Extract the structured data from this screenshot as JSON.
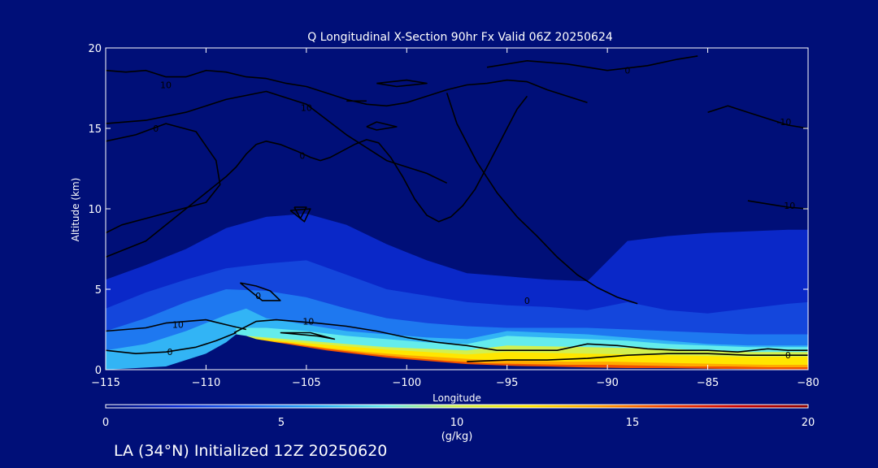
{
  "chart_data": {
    "type": "heatmap",
    "title": "Q Longitudinal X-Section 90hr  Fx Valid 06Z 20250624",
    "xlabel": "Longitude",
    "ylabel": "Altitude (km)",
    "xlim": [
      -115,
      -80
    ],
    "ylim": [
      0,
      20
    ],
    "x_ticks": [
      -115,
      -110,
      -105,
      -100,
      -95,
      -90,
      -85,
      -80
    ],
    "x_tick_labels": [
      "−115",
      "−110",
      "−105",
      "−100",
      "−95",
      "−90",
      "−85",
      "−80"
    ],
    "y_ticks": [
      0,
      5,
      10,
      15,
      20
    ],
    "y_tick_labels": [
      "0",
      "5",
      "10",
      "15",
      "20"
    ],
    "colorbar": {
      "label": "(g/kg)",
      "min": 0,
      "max": 20,
      "ticks": [
        0,
        5,
        10,
        15,
        20
      ],
      "tick_labels": [
        "0",
        "5",
        "10",
        "15",
        "20"
      ],
      "colors": [
        "#000f78",
        "#0a2ad2",
        "#1e64f0",
        "#28aaf5",
        "#64ecec",
        "#d2f050",
        "#ffe600",
        "#ffa000",
        "#f03c00",
        "#c80000",
        "#8c0000"
      ]
    },
    "terrain": {
      "color": "#000f78",
      "x": [
        -115,
        -112,
        -110,
        -109,
        -108.5,
        -108,
        -107.5,
        -107,
        -106,
        -105,
        -104,
        -103,
        -102,
        -101,
        -100,
        -99,
        -98,
        -97,
        -96,
        -95,
        -94,
        -93,
        -92,
        -91,
        -90,
        -89,
        -88,
        -87,
        -86,
        -85,
        -84,
        -83,
        -82,
        -81,
        -80
      ],
      "y": [
        0,
        0.2,
        1.0,
        1.7,
        2.2,
        2.1,
        1.9,
        1.8,
        1.6,
        1.4,
        1.2,
        1.05,
        0.9,
        0.75,
        0.65,
        0.55,
        0.45,
        0.35,
        0.3,
        0.25,
        0.22,
        0.2,
        0.17,
        0.14,
        0.12,
        0.1,
        0.1,
        0.1,
        0.08,
        0.06,
        0.05,
        0.04,
        0.03,
        0.02,
        0.02
      ]
    },
    "specific_humidity_layers": [
      {
        "value": 1.5,
        "color": "#0a28c8",
        "x": [
          -115,
          -113,
          -111,
          -109,
          -107,
          -105,
          -103,
          -101,
          -99,
          -97,
          -95,
          -93,
          -91,
          -89,
          -87,
          -85,
          -83,
          -81,
          -80
        ],
        "top": [
          5.6,
          6.5,
          7.5,
          8.8,
          9.5,
          9.7,
          9.0,
          7.8,
          6.8,
          6.0,
          5.8,
          5.6,
          5.5,
          8.0,
          8.3,
          8.5,
          8.6,
          8.7,
          8.7
        ]
      },
      {
        "value": 3,
        "color": "#1446dc",
        "x": [
          -115,
          -113,
          -111,
          -109,
          -107,
          -105,
          -103,
          -101,
          -99,
          -97,
          -95,
          -93,
          -91,
          -89,
          -87,
          -85,
          -83,
          -81,
          -80
        ],
        "top": [
          3.8,
          4.8,
          5.6,
          6.3,
          6.6,
          6.8,
          5.9,
          5.0,
          4.6,
          4.2,
          4.0,
          3.9,
          3.7,
          4.2,
          3.7,
          3.5,
          3.8,
          4.1,
          4.2
        ]
      },
      {
        "value": 5,
        "color": "#1e78f0",
        "x": [
          -115,
          -113,
          -111,
          -109,
          -107,
          -105,
          -103,
          -101,
          -99,
          -97,
          -95,
          -93,
          -91,
          -89,
          -87,
          -85,
          -83,
          -81,
          -80
        ],
        "top": [
          2.4,
          3.2,
          4.2,
          5.0,
          4.9,
          4.5,
          3.8,
          3.2,
          2.9,
          2.7,
          2.6,
          2.6,
          2.6,
          2.5,
          2.4,
          2.3,
          2.2,
          2.2,
          2.2
        ]
      },
      {
        "value": 7,
        "color": "#32b4f5",
        "x": [
          -115,
          -113,
          -111,
          -109,
          -108,
          -107,
          -105,
          -103,
          -101,
          -99,
          -97,
          -95,
          -93,
          -91,
          -89,
          -87,
          -85,
          -83,
          -81,
          -80
        ],
        "top": [
          1.2,
          1.6,
          2.4,
          3.4,
          3.8,
          3.2,
          2.8,
          2.4,
          2.2,
          2.0,
          1.9,
          2.4,
          2.3,
          2.2,
          2.0,
          1.8,
          1.6,
          1.5,
          1.5,
          1.5
        ]
      },
      {
        "value": 9,
        "color": "#64ecec",
        "x": [
          -108.5,
          -107,
          -105,
          -103,
          -101,
          -99,
          -97,
          -95,
          -93,
          -91,
          -89,
          -87,
          -85,
          -83,
          -81,
          -80
        ],
        "top": [
          2.6,
          2.6,
          2.4,
          2.1,
          1.9,
          1.7,
          1.6,
          2.1,
          2.0,
          1.9,
          1.8,
          1.6,
          1.5,
          1.4,
          1.4,
          1.4
        ]
      },
      {
        "value": 11,
        "color": "#d2f050",
        "x": [
          -108,
          -107,
          -105,
          -103,
          -101,
          -99,
          -97,
          -95,
          -93,
          -91,
          -89,
          -87,
          -85,
          -83,
          -81,
          -80
        ],
        "top": [
          2.1,
          2.0,
          1.8,
          1.6,
          1.4,
          1.3,
          1.2,
          1.5,
          1.45,
          1.4,
          1.35,
          1.3,
          1.2,
          1.1,
          1.1,
          1.1
        ]
      },
      {
        "value": 13,
        "color": "#ffe600",
        "x": [
          -107.5,
          -107,
          -105,
          -103,
          -101,
          -99,
          -97,
          -95,
          -93,
          -91,
          -89,
          -87,
          -85,
          -83,
          -81,
          -80
        ],
        "top": [
          1.95,
          1.9,
          1.65,
          1.45,
          1.25,
          1.1,
          0.95,
          1.1,
          1.05,
          1.0,
          0.95,
          0.9,
          0.85,
          0.8,
          0.8,
          0.8
        ]
      },
      {
        "value": 15,
        "color": "#ffaa00",
        "x": [
          -107.2,
          -106,
          -104,
          -102,
          -100,
          -98,
          -96,
          -94,
          -92,
          -90,
          -88,
          -86,
          -84,
          -82,
          -80
        ],
        "top": [
          1.85,
          1.7,
          1.35,
          1.1,
          0.9,
          0.75,
          0.6,
          0.55,
          0.5,
          0.5,
          0.45,
          0.4,
          0.35,
          0.3,
          0.3
        ]
      },
      {
        "value": 17,
        "color": "#f05000",
        "x": [
          -107,
          -106,
          -104,
          -102,
          -100,
          -98,
          -96,
          -94,
          -92,
          -90,
          -88,
          -86,
          -84,
          -82,
          -80
        ],
        "top": [
          1.75,
          1.65,
          1.3,
          1.0,
          0.75,
          0.55,
          0.4,
          0.35,
          0.3,
          0.3,
          0.25,
          0.2,
          0.2,
          0.15,
          0.15
        ]
      }
    ],
    "contours": [
      {
        "level": "0",
        "label_at": [
          -111.8,
          1.1
        ],
        "x": [
          -115,
          -113.5,
          -112,
          -110.5,
          -109.5,
          -108.5
        ],
        "y": [
          1.2,
          1.0,
          1.1,
          1.4,
          1.8,
          2.3
        ]
      },
      {
        "level": "0",
        "label_at": [
          -81,
          0.9
        ],
        "x": [
          -97,
          -95,
          -93,
          -91,
          -89,
          -87,
          -85,
          -83,
          -81,
          -80
        ],
        "y": [
          0.5,
          0.6,
          0.6,
          0.7,
          0.9,
          1.0,
          1.0,
          0.9,
          0.9,
          0.9
        ]
      },
      {
        "level": "10",
        "label_at": [
          -111.4,
          2.8
        ],
        "x": [
          -115,
          -114,
          -113,
          -112,
          -111,
          -110,
          -109,
          -108
        ],
        "y": [
          2.4,
          2.5,
          2.6,
          2.9,
          3.0,
          3.1,
          2.8,
          2.5
        ]
      },
      {
        "level": "10",
        "label_at": [
          -104.9,
          3.0
        ],
        "x": [
          -108.6,
          -107.5,
          -106.5,
          -105.5,
          -104.5,
          -103,
          -101.5,
          -100,
          -98.5,
          -97,
          -95.5,
          -94,
          -92.5,
          -91,
          -89.5,
          -88,
          -86.5,
          -85,
          -83.5,
          -82,
          -81,
          -80
        ],
        "y": [
          2.3,
          3.0,
          3.1,
          3.0,
          2.9,
          2.7,
          2.4,
          2.0,
          1.7,
          1.5,
          1.2,
          1.2,
          1.2,
          1.6,
          1.5,
          1.3,
          1.2,
          1.2,
          1.1,
          1.3,
          1.2,
          1.2
        ]
      },
      {
        "level": "10",
        "label_at": [
          -112,
          17.7
        ],
        "x": [
          -115,
          -114,
          -113,
          -112,
          -111,
          -110,
          -109,
          -108,
          -107,
          -106,
          -105,
          -104,
          -103,
          -102,
          -101,
          -100,
          -99,
          -98,
          -97,
          -96,
          -95,
          -94,
          -93,
          -92,
          -91
        ],
        "y": [
          18.6,
          18.5,
          18.6,
          18.2,
          18.2,
          18.6,
          18.5,
          18.2,
          18.1,
          17.8,
          17.6,
          17.2,
          16.8,
          16.5,
          16.4,
          16.6,
          17.0,
          17.4,
          17.7,
          17.8,
          18.0,
          17.9,
          17.4,
          17.0,
          16.6
        ]
      },
      {
        "level": "10",
        "label_at": [
          -105,
          16.3
        ],
        "x": [
          -115,
          -113,
          -111,
          -109,
          -107,
          -105,
          -103,
          -101,
          -99,
          -98
        ],
        "y": [
          15.3,
          15.5,
          16.0,
          16.8,
          17.3,
          16.5,
          14.6,
          13.0,
          12.2,
          11.6
        ]
      },
      {
        "level": "0",
        "label_at": [
          -112.5,
          15.0
        ],
        "x": [
          -115,
          -113.5,
          -112,
          -110.5,
          -109.5,
          -109.3,
          -110,
          -111.5,
          -113,
          -114.2,
          -115
        ],
        "y": [
          14.2,
          14.6,
          15.3,
          14.8,
          13.0,
          11.5,
          10.4,
          9.9,
          9.4,
          9.0,
          8.5
        ]
      },
      {
        "level": "0",
        "label_at": [
          -105.2,
          13.3
        ],
        "x": [
          -115,
          -113,
          -111,
          -110,
          -109,
          -108.5,
          -108,
          -107.5,
          -107,
          -106.3,
          -105.5,
          -104.8,
          -104.3,
          -103.8,
          -103.2,
          -102.6,
          -102.0,
          -101.4,
          -100.8,
          -100.2,
          -99.6,
          -99,
          -98.4,
          -97.8,
          -97.2,
          -96.6,
          -96,
          -95.5,
          -95,
          -94.5,
          -94
        ],
        "y": [
          7.0,
          8.0,
          10.0,
          11.0,
          12.0,
          12.6,
          13.4,
          14.0,
          14.2,
          14.0,
          13.6,
          13.2,
          13.0,
          13.2,
          13.6,
          14.0,
          14.3,
          14.1,
          13.2,
          12.0,
          10.6,
          9.6,
          9.2,
          9.5,
          10.2,
          11.2,
          12.6,
          13.8,
          15.0,
          16.2,
          17.0
        ]
      },
      {
        "level": "0",
        "label_at": [
          -89,
          18.6
        ],
        "x": [
          -96,
          -94,
          -92,
          -90,
          -88,
          -86.5,
          -85.5
        ],
        "y": [
          18.8,
          19.2,
          19.0,
          18.6,
          18.9,
          19.3,
          19.5
        ]
      },
      {
        "level": "0",
        "label_at": [
          -94,
          4.3
        ],
        "x": [
          -98,
          -97.5,
          -96.5,
          -95.5,
          -94.5,
          -93.5,
          -92.5,
          -91.5,
          -90.5,
          -89.5,
          -88.5
        ],
        "y": [
          17.2,
          15.3,
          12.9,
          11.0,
          9.5,
          8.3,
          7.0,
          5.9,
          5.1,
          4.5,
          4.1
        ]
      },
      {
        "level": "-10",
        "label_at": [
          -81.2,
          15.4
        ],
        "x": [
          -85,
          -84,
          -83,
          -82,
          -81,
          -80
        ],
        "y": [
          16.0,
          16.4,
          16.0,
          15.6,
          15.2,
          15.0
        ]
      },
      {
        "level": "-10",
        "label_at": [
          -81.0,
          10.2
        ],
        "x": [
          -83,
          -82,
          -81,
          -80
        ],
        "y": [
          10.5,
          10.3,
          10.1,
          10.0
        ]
      },
      {
        "level": "0",
        "label_at": [
          -107.4,
          4.6
        ],
        "x": [
          -108.3,
          -107.5,
          -106.8,
          -106.3,
          -107.2,
          -108.3
        ],
        "y": [
          5.4,
          5.2,
          4.9,
          4.3,
          4.3,
          5.4
        ]
      },
      {
        "level": "",
        "label_at": null,
        "x": [
          -105.8,
          -104.8,
          -105.1,
          -105.8
        ],
        "y": [
          9.9,
          10.0,
          9.2,
          9.9
        ]
      },
      {
        "level": "",
        "label_at": null,
        "x": [
          -105.6,
          -105.0,
          -105.3,
          -105.6
        ],
        "y": [
          10.1,
          10.1,
          9.4,
          10.1
        ]
      },
      {
        "level": "",
        "label_at": null,
        "x": [
          -106.3,
          -104.5,
          -103.6,
          -104.8,
          -106.3
        ],
        "y": [
          2.3,
          2.1,
          1.9,
          2.3,
          2.3
        ]
      },
      {
        "level": "",
        "label_at": null,
        "x": [
          -102,
          -101.5,
          -100.5,
          -101.5,
          -102
        ],
        "y": [
          15.1,
          15.4,
          15.1,
          14.9,
          15.1
        ]
      },
      {
        "level": "",
        "label_at": null,
        "x": [
          -101.5,
          -100,
          -99,
          -100.5,
          -101.5
        ],
        "y": [
          17.8,
          18.0,
          17.8,
          17.6,
          17.8
        ]
      },
      {
        "level": "",
        "label_at": null,
        "x": [
          -103,
          -102
        ],
        "y": [
          16.7,
          16.7
        ]
      }
    ],
    "contour_label_strings": [
      "0",
      "0",
      "10",
      "10",
      "10",
      "10",
      "0",
      "0",
      "0",
      "0",
      "-10",
      "-10",
      "0"
    ]
  },
  "footer": {
    "text": "LA (34°N) Initialized 12Z 20250620"
  }
}
